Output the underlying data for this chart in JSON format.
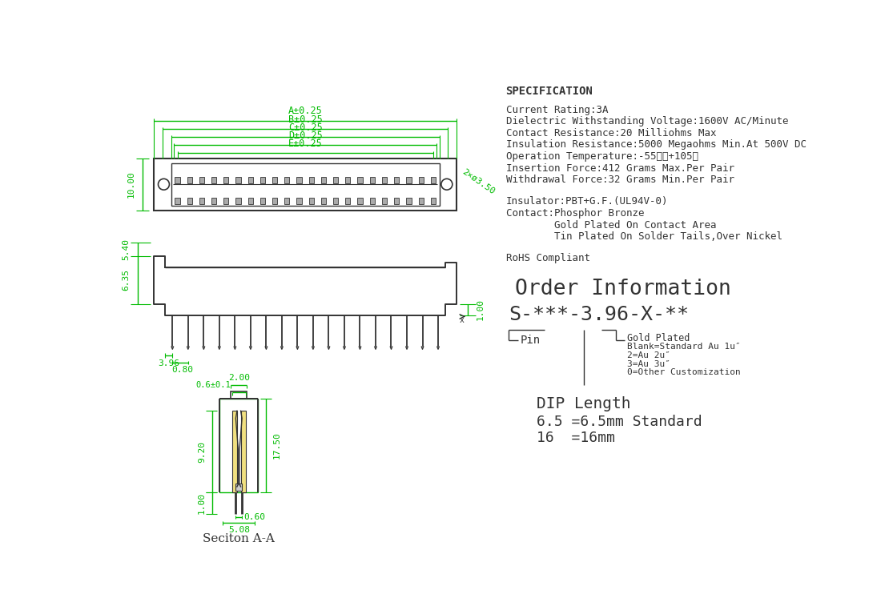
{
  "bg_color": "#ffffff",
  "green": "#00bb00",
  "dark": "#333333",
  "tan": "#f0e080",
  "spec_title": "SPECIFICATION",
  "spec_lines": [
    "Current Rating:3A",
    "Dielectric Withstanding Voltage:1600V AC/Minute",
    "Contact Resistance:20 Milliohms Max",
    "Insulation Resistance:5000 Megaohms Min.At 500V DC",
    "Operation Temperature:-55℃～+105℃",
    "Insertion Force:412 Grams Max.Per Pair",
    "Withdrawal Force:32 Grams Min.Per Pair"
  ],
  "material_lines": [
    "Insulator:PBT+G.F.(UL94V-0)",
    "Contact:Phosphor Bronze",
    "        Gold Plated On Contact Area",
    "        Tin Plated On Solder Tails,Over Nickel"
  ],
  "rohs_line": "RoHS Compliant",
  "order_title": "Order Information",
  "order_code": "S-***-3.96-X-**",
  "order_pin_label": "└Pin",
  "order_info": [
    "Gold Plated",
    "Blank=Standard Au 1u″",
    "2=Au 2u″",
    "3=Au 3u″",
    "0=Other Customization"
  ],
  "dip_title": "DIP Length",
  "dip_lines": [
    "6.5 =6.5mm Standard",
    "16  =16mm"
  ]
}
